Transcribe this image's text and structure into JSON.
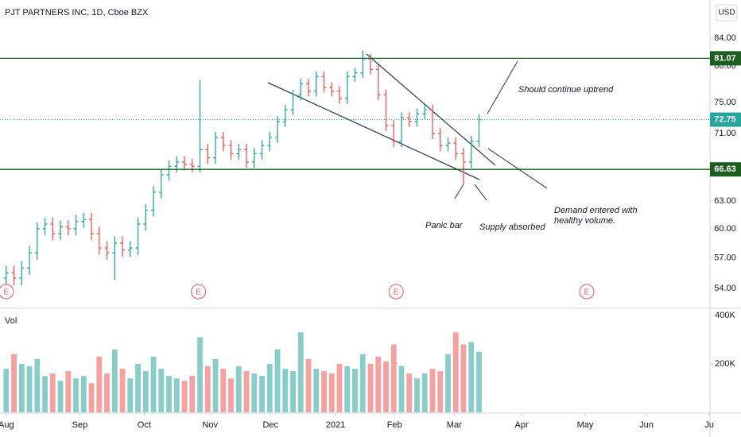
{
  "chart_data": {
    "type": "ohlc",
    "title": "PJT PARTNERS INC, 1D, Cboe BZX",
    "currency": "USD",
    "log_scale": true,
    "grid": false,
    "up_color": "#26a69a",
    "down_color": "#ef5350",
    "open": [
      55.0,
      55.5,
      55.0,
      56.0,
      57.5,
      60.0,
      60.5,
      59.5,
      60.2,
      60.0,
      60.8,
      61.0,
      59.5,
      58.0,
      57.5,
      58.5,
      57.8,
      58.0,
      60.5,
      62.0,
      64.0,
      66.0,
      67.0,
      67.5,
      67.2,
      67.0,
      69.0,
      68.0,
      70.5,
      69.5,
      68.5,
      69.0,
      67.5,
      68.5,
      69.5,
      70.5,
      72.5,
      74.0,
      76.0,
      77.5,
      76.5,
      78.5,
      77.0,
      76.5,
      75.5,
      78.5,
      79.0,
      81.0,
      79.5,
      76.0,
      72.0,
      70.0,
      73.0,
      72.5,
      73.5,
      74.0,
      71.0,
      69.5,
      69.8,
      68.5,
      67.5,
      70.0
    ],
    "high": [
      56.2,
      56.2,
      56.7,
      58.2,
      60.7,
      61.2,
      61.2,
      60.9,
      60.9,
      61.5,
      61.7,
      61.7,
      60.2,
      58.7,
      59.2,
      59.2,
      58.7,
      61.2,
      62.7,
      64.7,
      66.7,
      67.7,
      68.2,
      68.2,
      67.9,
      78.0,
      69.7,
      71.2,
      71.2,
      70.2,
      69.7,
      69.7,
      69.2,
      70.2,
      71.2,
      73.2,
      74.7,
      76.7,
      78.2,
      78.2,
      79.2,
      79.2,
      77.7,
      77.2,
      79.2,
      79.7,
      82.2,
      81.7,
      80.2,
      76.7,
      72.7,
      73.7,
      73.7,
      74.2,
      74.7,
      74.7,
      71.7,
      70.5,
      70.5,
      69.2,
      70.7,
      73.45
    ],
    "low": [
      54.3,
      54.3,
      54.3,
      55.3,
      56.8,
      59.3,
      58.8,
      58.8,
      59.3,
      59.3,
      60.1,
      58.8,
      57.3,
      56.8,
      54.8,
      57.1,
      57.1,
      57.3,
      59.8,
      61.3,
      63.3,
      65.3,
      66.3,
      66.5,
      66.3,
      66.3,
      67.3,
      67.3,
      68.8,
      67.8,
      67.8,
      66.8,
      66.8,
      67.8,
      68.8,
      69.8,
      71.8,
      73.3,
      75.3,
      75.8,
      75.8,
      76.3,
      75.8,
      74.8,
      74.8,
      77.8,
      78.3,
      78.8,
      75.3,
      71.3,
      69.3,
      69.3,
      71.8,
      71.8,
      72.8,
      70.3,
      68.8,
      68.8,
      67.8,
      64.9,
      66.8,
      69.3
    ],
    "close": [
      55.5,
      55.0,
      56.0,
      57.5,
      60.0,
      60.5,
      59.5,
      60.2,
      60.0,
      60.8,
      61.0,
      59.5,
      58.0,
      57.5,
      58.5,
      57.8,
      58.0,
      60.5,
      62.0,
      64.0,
      66.0,
      67.0,
      67.5,
      67.2,
      67.0,
      69.0,
      68.0,
      70.5,
      69.5,
      68.5,
      69.0,
      67.5,
      68.5,
      69.5,
      70.5,
      72.5,
      74.0,
      76.0,
      77.5,
      76.5,
      78.5,
      77.0,
      76.5,
      75.5,
      78.5,
      79.0,
      81.0,
      79.5,
      76.0,
      72.0,
      70.0,
      73.0,
      72.5,
      73.5,
      74.0,
      71.0,
      69.5,
      69.8,
      68.5,
      67.5,
      70.0,
      72.75
    ],
    "xlim": [
      -0.8,
      90.8
    ],
    "xticks": [
      {
        "value": 0,
        "label": "Aug"
      },
      {
        "value": 9.5,
        "label": "Sep"
      },
      {
        "value": 17.8,
        "label": "Oct"
      },
      {
        "value": 26.3,
        "label": "Nov"
      },
      {
        "value": 34.1,
        "label": "Dec"
      },
      {
        "value": 42.5,
        "label": "2021"
      },
      {
        "value": 50.1,
        "label": "Feb"
      },
      {
        "value": 57.8,
        "label": "Mar"
      },
      {
        "value": 66.5,
        "label": "Apr"
      },
      {
        "value": 74.7,
        "label": "May"
      },
      {
        "value": 82.6,
        "label": "Jun"
      },
      {
        "value": 90.7,
        "label": "Ju"
      }
    ],
    "ylim": [
      52.36,
      89.86
    ],
    "yticks": [
      {
        "value": 84,
        "label": "84.00"
      },
      {
        "value": 80,
        "label": "80.00"
      },
      {
        "value": 75,
        "label": "75.00"
      },
      {
        "value": 71,
        "label": "71.00"
      },
      {
        "value": 63,
        "label": "63.00"
      },
      {
        "value": 60,
        "label": "60.00"
      },
      {
        "value": 57,
        "label": "57.00"
      },
      {
        "value": 54,
        "label": "54.00"
      }
    ],
    "levels": [
      {
        "value": 81.07,
        "color": "#1b5e20",
        "style": "solid"
      },
      {
        "value": 66.63,
        "color": "#1b5e20",
        "style": "solid"
      },
      {
        "value": 72.75,
        "color": "#26a69a",
        "style": "dotted"
      }
    ],
    "events": [
      "E",
      "E",
      "E",
      "E"
    ],
    "annotations": [
      "Should continue uptrend",
      "Panic bar",
      "Supply absorbed",
      "Demand entered with",
      "healthy volume."
    ],
    "volume": {
      "label": "Vol",
      "values": [
        180000,
        240000,
        200000,
        190000,
        220000,
        150000,
        160000,
        130000,
        170000,
        140000,
        150000,
        120000,
        230000,
        160000,
        260000,
        180000,
        140000,
        200000,
        170000,
        230000,
        180000,
        150000,
        140000,
        130000,
        150000,
        310000,
        190000,
        220000,
        180000,
        140000,
        190000,
        170000,
        160000,
        150000,
        200000,
        260000,
        180000,
        170000,
        330000,
        220000,
        180000,
        170000,
        160000,
        200000,
        190000,
        180000,
        240000,
        200000,
        230000,
        210000,
        280000,
        190000,
        160000,
        140000,
        160000,
        180000,
        170000,
        240000,
        330000,
        280000,
        290000,
        250000
      ],
      "ylim": [
        0,
        416000
      ],
      "yticks": [
        {
          "value": 200000,
          "label": "200K"
        },
        {
          "value": 400000,
          "label": "400K"
        }
      ]
    }
  }
}
